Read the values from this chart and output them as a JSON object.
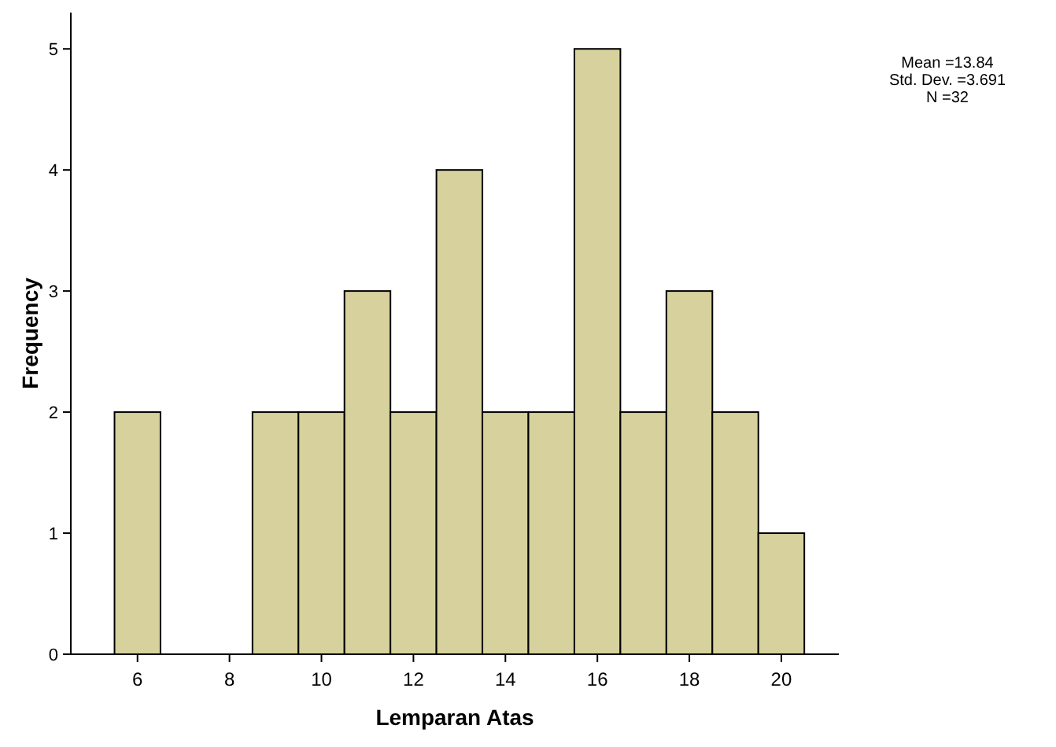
{
  "chart_data": {
    "type": "histogram",
    "xlabel": "Lemparan Atas",
    "ylabel": "Frequency",
    "bins": [
      5.5,
      6.5,
      7.5,
      8.5,
      9.5,
      10.5,
      11.5,
      12.5,
      13.5,
      14.5,
      15.5,
      16.5,
      17.5,
      18.5,
      19.5,
      20.5
    ],
    "values": [
      2,
      0,
      0,
      2,
      2,
      3,
      2,
      4,
      2,
      2,
      5,
      2,
      3,
      2,
      1
    ],
    "color": "#d6d19d",
    "xlim": [
      4.55,
      21.25
    ],
    "xticks": [
      6,
      8,
      10,
      12,
      14,
      16,
      18,
      20
    ],
    "ylim": [
      0,
      5.3
    ],
    "yticks": [
      0,
      1,
      2,
      3,
      4,
      5
    ],
    "annotations": [
      "Mean =13.84",
      "Std. Dev. =3.691",
      "N =32"
    ],
    "grid": false
  }
}
